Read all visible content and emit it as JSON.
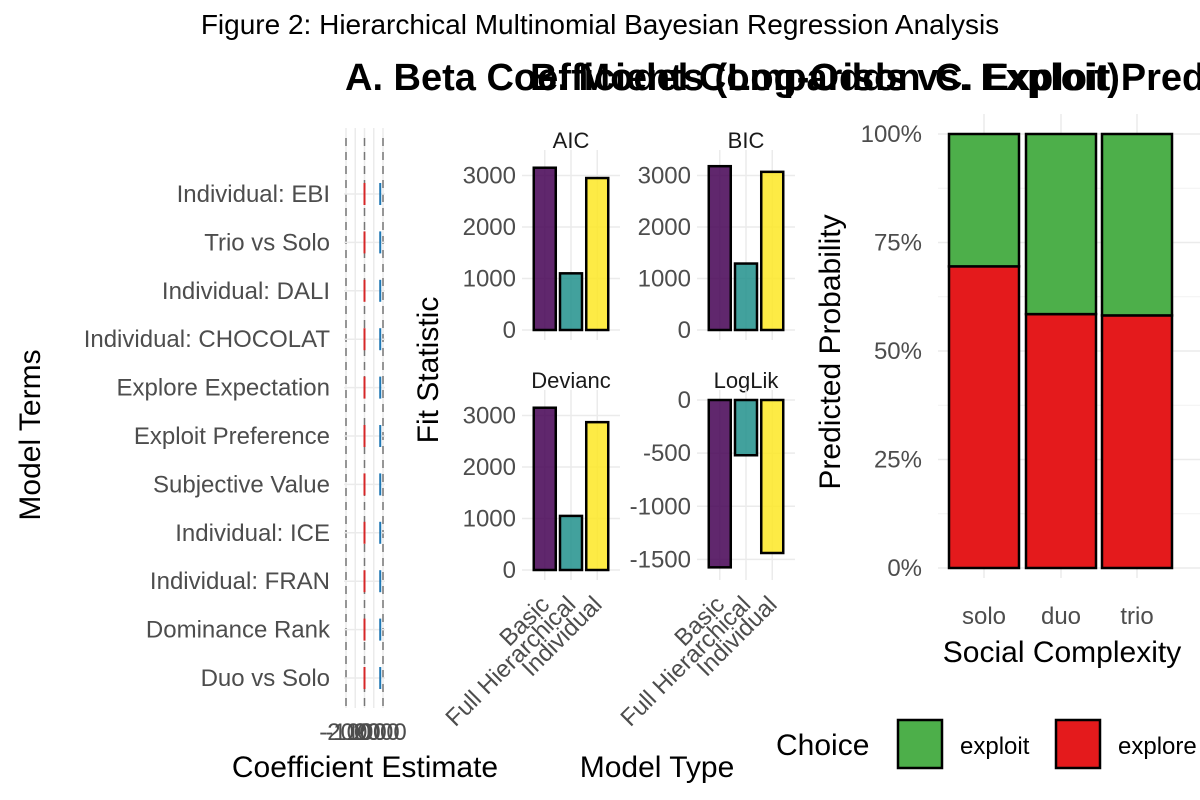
{
  "figure_title": "Figure 2: Hierarchical Multinomial Bayesian Regression Analysis",
  "colors": {
    "basic": "#440154",
    "full_hierarchical": "#21908C",
    "individual": "#FDE725",
    "exploit": "#4DAF4A",
    "explore": "#E41A1C",
    "coef_red": "#d62728",
    "coef_blue": "#1f77b4",
    "grid": "#ebebeb"
  },
  "chart_data": [
    {
      "panel": "A",
      "type": "scatter",
      "title": "A. Beta Coefficients (Log-Odds vs. Exploit)",
      "xlabel": "Coefficient Estimate",
      "ylabel": "Model Terms",
      "x_tick_labels": [
        "-2000",
        "-1000",
        "0",
        "1000",
        "2000"
      ],
      "xlim": [
        -2000,
        2000
      ],
      "categories": [
        "Individual: EBI",
        "Trio vs Solo",
        "Individual: DALI",
        "Individual: CHOCOLAT",
        "Explore Expectation",
        "Exploit Preference",
        "Subjective Value",
        "Individual: ICE",
        "Individual: FRAN",
        "Dominance Rank",
        "Duo vs Solo"
      ]
    },
    {
      "panel": "B",
      "type": "bar",
      "title": "B. Model Comparison",
      "xlabel": "Model Type",
      "ylabel": "Fit Statistic",
      "categories": [
        "Basic",
        "Full Hierarchical",
        "Individual"
      ],
      "facets": [
        {
          "name": "AIC",
          "values": [
            3150,
            1100,
            2950
          ],
          "ylim": [
            0,
            3300
          ],
          "ticks": [
            0,
            1000,
            2000,
            3000
          ]
        },
        {
          "name": "BIC",
          "values": [
            3180,
            1290,
            3070
          ],
          "ylim": [
            0,
            3300
          ],
          "ticks": [
            0,
            1000,
            2000,
            3000
          ]
        },
        {
          "name": "Devianc",
          "values": [
            3150,
            1050,
            2870
          ],
          "ylim": [
            0,
            3300
          ],
          "ticks": [
            0,
            1000,
            2000,
            3000
          ]
        },
        {
          "name": "LogLik",
          "values": [
            -1575,
            -520,
            -1440
          ],
          "ylim": [
            -1600,
            0
          ],
          "ticks": [
            0,
            -500,
            -1000,
            -1500
          ],
          "tick_labels": [
            "0",
            "-500",
            "-1000",
            "-1500"
          ]
        }
      ]
    },
    {
      "panel": "C",
      "type": "bar",
      "stacked": true,
      "title": "C. Exploit Prediction",
      "xlabel": "Social Complexity",
      "ylabel": "Predicted Probability",
      "categories": [
        "solo",
        "duo",
        "trio"
      ],
      "y_tick_labels": [
        "0%",
        "25%",
        "50%",
        "75%",
        "100%"
      ],
      "ylim": [
        0,
        1
      ],
      "series": [
        {
          "name": "explore",
          "values": [
            0.695,
            0.585,
            0.582
          ]
        },
        {
          "name": "exploit",
          "values": [
            0.305,
            0.415,
            0.418
          ]
        }
      ],
      "legend": {
        "title": "Choice",
        "position": "bottom",
        "labels": [
          "exploit",
          "explore"
        ]
      }
    }
  ]
}
